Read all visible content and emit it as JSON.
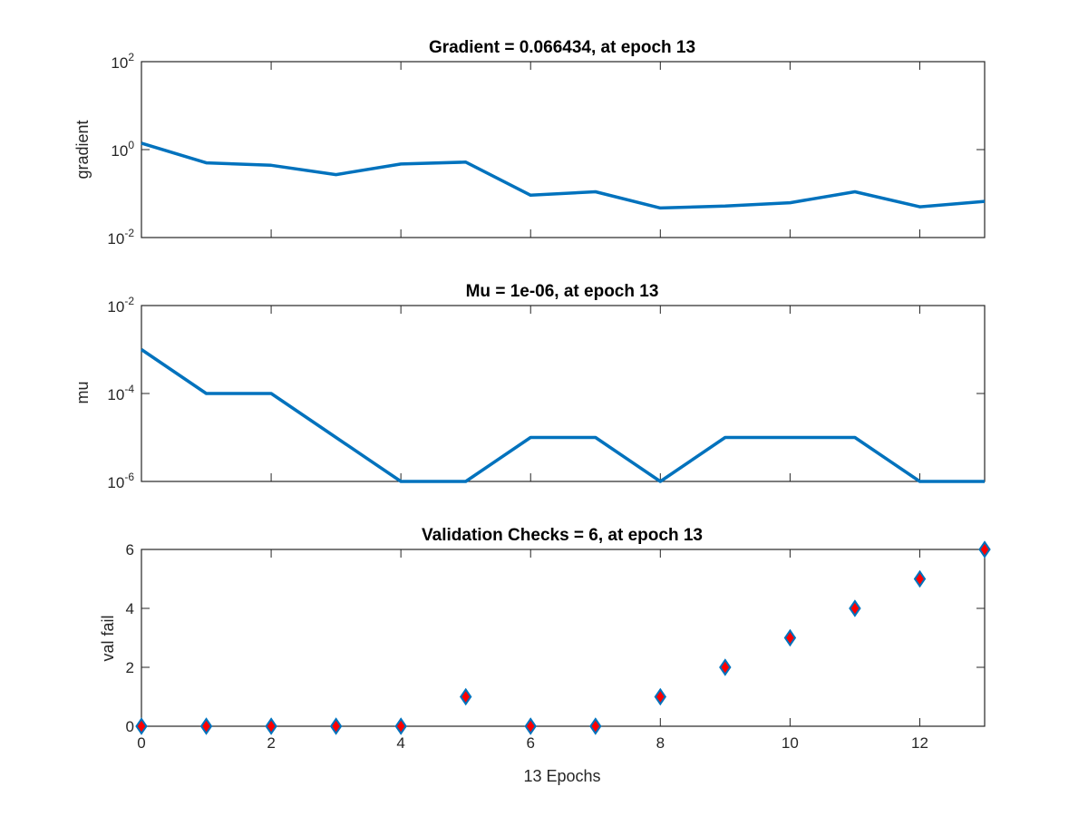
{
  "figure": {
    "background": "#ffffff",
    "axis_color": "#262626",
    "line_color": "#0072bd",
    "marker_face": "#ff0000",
    "marker_edge": "#0072bd",
    "xlabel": "13 Epochs"
  },
  "chart_data": [
    {
      "type": "line",
      "title": "Gradient = 0.066434, at epoch 13",
      "ylabel": "gradient",
      "yscale": "log",
      "ylim": [
        0.01,
        100
      ],
      "xlim": [
        0,
        13
      ],
      "yticks": [
        {
          "value": 0.01,
          "base": "10",
          "exp": "-2"
        },
        {
          "value": 1,
          "base": "10",
          "exp": "0"
        },
        {
          "value": 100,
          "base": "10",
          "exp": "2"
        }
      ],
      "x": [
        0,
        1,
        2,
        3,
        4,
        5,
        6,
        7,
        8,
        9,
        10,
        11,
        12,
        13
      ],
      "values": [
        1.4,
        0.5,
        0.44,
        0.27,
        0.47,
        0.52,
        0.092,
        0.11,
        0.047,
        0.052,
        0.062,
        0.11,
        0.05,
        0.066434
      ],
      "grid": false
    },
    {
      "type": "line",
      "title": "Mu = 1e-06, at epoch 13",
      "ylabel": "mu",
      "yscale": "log",
      "ylim": [
        1e-06,
        0.01
      ],
      "xlim": [
        0,
        13
      ],
      "yticks": [
        {
          "value": 1e-06,
          "base": "10",
          "exp": "-6"
        },
        {
          "value": 0.0001,
          "base": "10",
          "exp": "-4"
        },
        {
          "value": 0.01,
          "base": "10",
          "exp": "-2"
        }
      ],
      "x": [
        0,
        1,
        2,
        3,
        4,
        5,
        6,
        7,
        8,
        9,
        10,
        11,
        12,
        13
      ],
      "values": [
        0.001,
        0.0001,
        0.0001,
        1e-05,
        1e-06,
        1e-06,
        1e-05,
        1e-05,
        1e-06,
        1e-05,
        1e-05,
        1e-05,
        1e-06,
        1e-06
      ],
      "grid": false
    },
    {
      "type": "scatter",
      "title": "Validation Checks = 6, at epoch 13",
      "ylabel": "val fail",
      "yscale": "linear",
      "ylim": [
        0,
        6
      ],
      "xlim": [
        0,
        13
      ],
      "yticks": [
        {
          "value": 0,
          "label": "0"
        },
        {
          "value": 2,
          "label": "2"
        },
        {
          "value": 4,
          "label": "4"
        },
        {
          "value": 6,
          "label": "6"
        }
      ],
      "xticks": [
        "0",
        "2",
        "4",
        "6",
        "8",
        "10",
        "12"
      ],
      "x": [
        0,
        1,
        2,
        3,
        4,
        5,
        6,
        7,
        8,
        9,
        10,
        11,
        12,
        13
      ],
      "values": [
        0,
        0,
        0,
        0,
        0,
        1,
        0,
        0,
        1,
        2,
        3,
        4,
        5,
        6
      ],
      "marker": "diamond",
      "grid": false
    }
  ]
}
